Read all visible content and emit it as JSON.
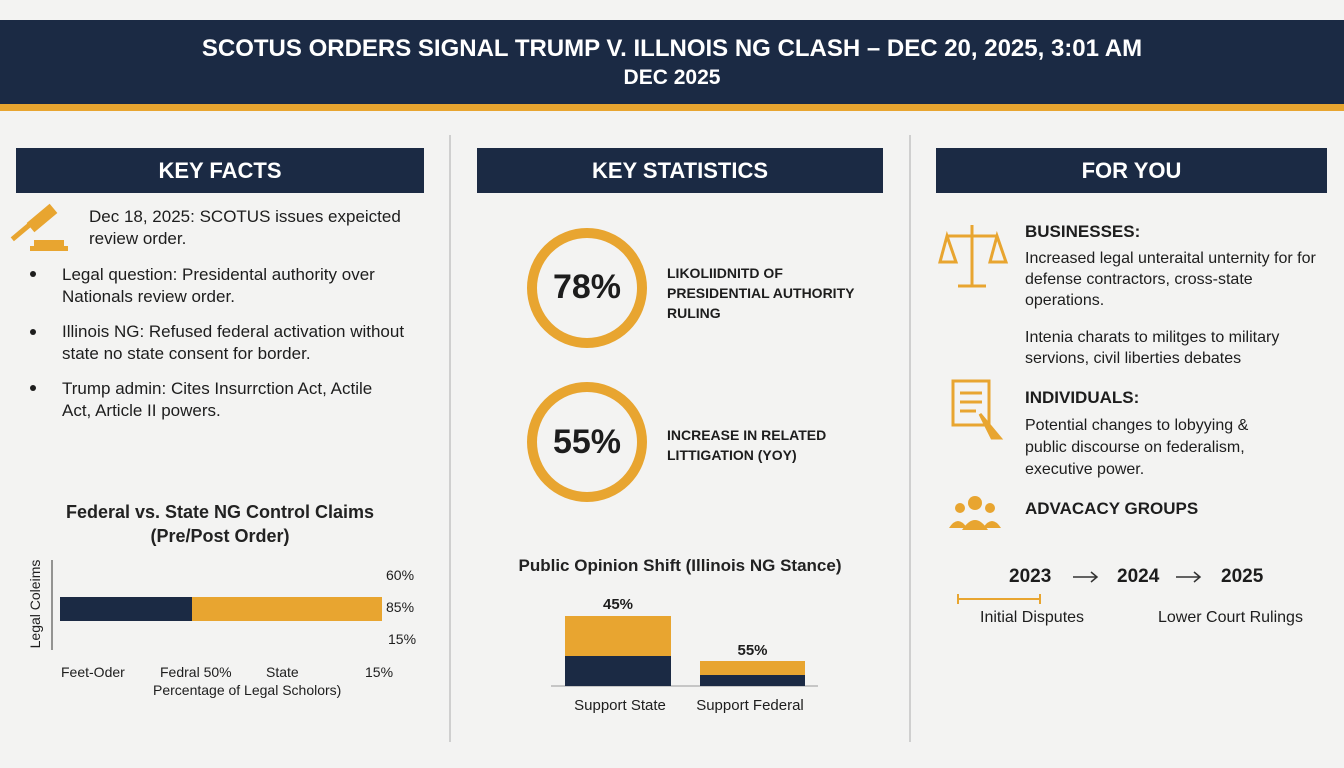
{
  "header": {
    "title": "SCOTUS ORDERS SIGNAL TRUMP V. ILLNOIS NG CLASH – DEC 20, 2025, 3:01 AM",
    "subtitle": "DEC 2025"
  },
  "key_facts": {
    "heading": "KEY FACTS",
    "lead": "Dec 18, 2025: SCOTUS issues expeicted review order.",
    "bullets": [
      "Legal question: Presidental authority over Nationals review order.",
      "Illinois NG: Refused federal activation without state no state consent for border.",
      "Trump admin: Cites Insurrction Act, Actile Act, Article II powers."
    ]
  },
  "control_chart": {
    "title_lines": [
      "Federal vs. State NG Control Claims",
      "(Pre/Post Order)"
    ],
    "y_label": "Legal Coleims",
    "right_labels": [
      "60%",
      "85%",
      "15%"
    ],
    "x_labels": [
      "Feet-Oder",
      "Fedral 50%",
      "State",
      "15%"
    ],
    "x_title": "Percentage of Legal Scholors)"
  },
  "key_statistics": {
    "heading": "KEY STATISTICS",
    "stats": [
      {
        "value": "78%",
        "label": "LIKOLIIDNITD OF PRESIDENTIAL AUTHORITY RULING"
      },
      {
        "value": "55%",
        "label": "INCREASE IN RELATED LITTIGATION (YOY)"
      }
    ]
  },
  "opinion_chart": {
    "title": "Public Opinion Shift (Illinois NG Stance)",
    "bar_labels": [
      "45%",
      "55%"
    ],
    "categories": [
      "Support State",
      "Support Federal"
    ]
  },
  "for_you": {
    "heading": "FOR YOU",
    "businesses": {
      "title": "BUSINESSES:",
      "texts": [
        "Increased legal unteraital unternity for for defense contractors, cross-state operations.",
        "Intenia charats to militges to military servions, civil liberties debates"
      ]
    },
    "individuals": {
      "title": "INDIVIDUALS:",
      "text": "Potential changes to lobyying & public discourse on federalism, executive power."
    },
    "advocacy": {
      "title": "ADVACACY GROUPS"
    },
    "timeline": {
      "years": [
        "2023",
        "2024",
        "2025"
      ],
      "labels": [
        "Initial Disputes",
        "Lower Court Rulings"
      ]
    }
  }
}
